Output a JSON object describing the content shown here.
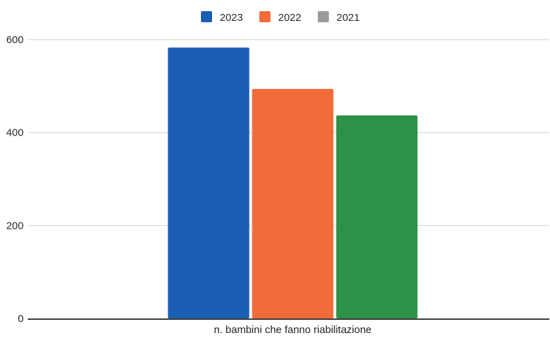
{
  "chart_data": {
    "type": "bar",
    "title": "",
    "xlabel": "",
    "ylabel": "",
    "categories": [
      "n. bambini che fanno riabilitazione"
    ],
    "series": [
      {
        "name": "2023",
        "values": [
          583
        ],
        "color": "#1a5fb4"
      },
      {
        "name": "2022",
        "values": [
          494
        ],
        "color": "#f26b3a"
      },
      {
        "name": "2021",
        "values": [
          437
        ],
        "color": "#2e9148"
      }
    ],
    "legend_colors": [
      "#1a5fb4",
      "#f26b3a",
      "#9a9a9a"
    ],
    "ylim": [
      0,
      600
    ],
    "yticks": [
      0,
      200,
      400,
      600
    ],
    "grid": true,
    "legend_position": "top-center"
  }
}
